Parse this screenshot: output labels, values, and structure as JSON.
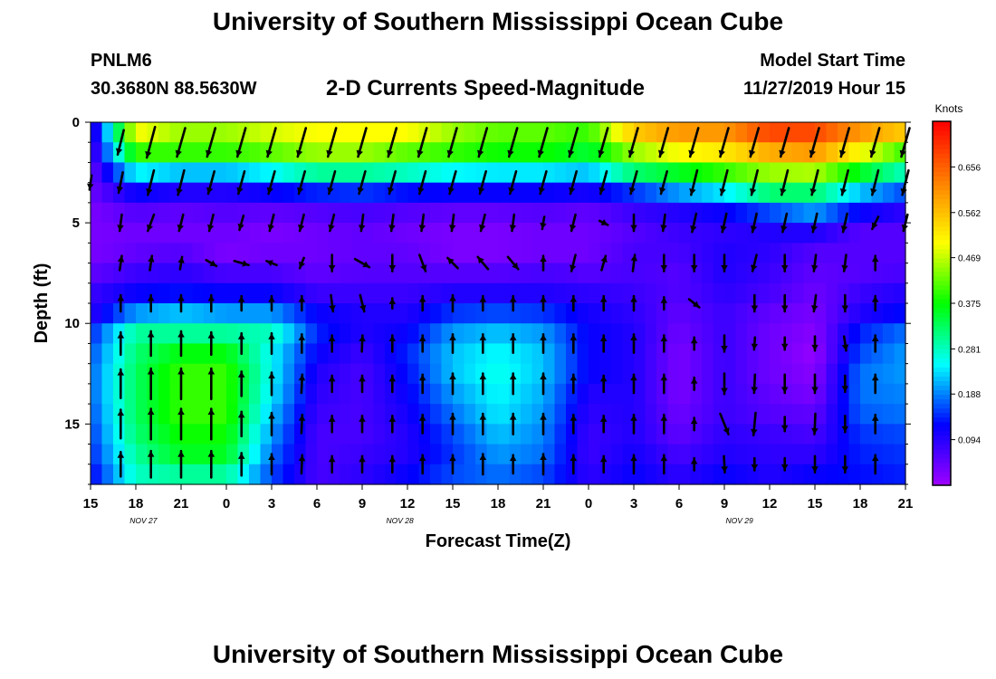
{
  "header": {
    "title": "University of Southern Mississippi Ocean Cube",
    "station_id": "PNLM6",
    "coordinates": "30.3680N 88.5630W",
    "chart_title": "2-D Currents Speed-Magnitude",
    "model_start_label": "Model Start Time",
    "model_start_value": "11/27/2019 Hour 15"
  },
  "footer": {
    "title": "University of Southern Mississippi Ocean Cube"
  },
  "chart_data": {
    "type": "heatmap",
    "title": "2-D Currents Speed-Magnitude",
    "xlabel": "Forecast Time(Z)",
    "ylabel": "Depth (ft)",
    "units_label": "Knots",
    "x_hours": [
      0,
      3,
      6,
      9,
      12,
      15,
      18,
      21,
      24,
      27,
      30,
      33,
      36,
      39,
      42,
      45,
      48,
      51,
      54
    ],
    "x_tick_labels": [
      "15",
      "18",
      "21",
      "0",
      "3",
      "6",
      "9",
      "12",
      "15",
      "18",
      "21",
      "0",
      "3",
      "6",
      "9",
      "12",
      "15",
      "18",
      "21"
    ],
    "date_labels": [
      {
        "text": "NOV  27",
        "hour": 3.5
      },
      {
        "text": "NOV  28",
        "hour": 20.5
      },
      {
        "text": "NOV  29",
        "hour": 43
      }
    ],
    "ylim": [
      0,
      18
    ],
    "y_ticks": [
      0,
      5,
      10,
      15
    ],
    "depths": [
      0.5,
      1.5,
      2.5,
      3.5,
      4.5,
      5.5,
      6.5,
      7.5,
      8.5,
      9.5,
      10.5,
      11.5,
      12.5,
      13.5,
      14.5,
      15.5,
      16.5,
      17.5
    ],
    "colorbar": {
      "min": 0,
      "max": 0.75,
      "ticks": [
        0.094,
        0.188,
        0.281,
        0.375,
        0.469,
        0.562,
        0.656
      ],
      "tick_labels": [
        "0.094",
        "0.188",
        "0.281",
        "0.375",
        "0.469",
        "0.562",
        "0.656"
      ],
      "colors": [
        "#a000ff",
        "#0000ff",
        "#00ffff",
        "#00ff00",
        "#ffff00",
        "#ff8000",
        "#ff0000"
      ]
    },
    "speed_keys": [
      {
        "hour": 0,
        "profile": [
          0.06,
          0.05,
          0.04,
          0.04,
          0.03,
          0.03,
          0.03,
          0.05,
          0.08,
          0.09,
          0.14,
          0.16,
          0.17,
          0.17,
          0.16,
          0.15,
          0.14,
          0.12
        ]
      },
      {
        "hour": 3,
        "profile": [
          0.5,
          0.4,
          0.25,
          0.12,
          0.06,
          0.04,
          0.05,
          0.08,
          0.12,
          0.2,
          0.3,
          0.32,
          0.33,
          0.33,
          0.33,
          0.32,
          0.3,
          0.28
        ]
      },
      {
        "hour": 6,
        "profile": [
          0.45,
          0.4,
          0.22,
          0.1,
          0.05,
          0.04,
          0.06,
          0.09,
          0.13,
          0.22,
          0.3,
          0.37,
          0.4,
          0.4,
          0.4,
          0.38,
          0.36,
          0.3
        ]
      },
      {
        "hour": 9,
        "profile": [
          0.45,
          0.4,
          0.22,
          0.1,
          0.06,
          0.04,
          0.03,
          0.07,
          0.12,
          0.2,
          0.3,
          0.37,
          0.4,
          0.4,
          0.4,
          0.38,
          0.36,
          0.3
        ]
      },
      {
        "hour": 12,
        "profile": [
          0.48,
          0.42,
          0.25,
          0.12,
          0.05,
          0.03,
          0.04,
          0.07,
          0.12,
          0.2,
          0.28,
          0.25,
          0.25,
          0.24,
          0.22,
          0.2,
          0.18,
          0.16
        ]
      },
      {
        "hour": 15,
        "profile": [
          0.5,
          0.45,
          0.3,
          0.14,
          0.06,
          0.04,
          0.04,
          0.05,
          0.08,
          0.12,
          0.14,
          0.12,
          0.1,
          0.09,
          0.08,
          0.07,
          0.07,
          0.07
        ]
      },
      {
        "hour": 18,
        "profile": [
          0.5,
          0.45,
          0.3,
          0.15,
          0.07,
          0.05,
          0.05,
          0.06,
          0.08,
          0.1,
          0.1,
          0.08,
          0.07,
          0.07,
          0.07,
          0.07,
          0.08,
          0.09
        ]
      },
      {
        "hour": 21,
        "profile": [
          0.5,
          0.42,
          0.28,
          0.13,
          0.06,
          0.04,
          0.05,
          0.06,
          0.08,
          0.1,
          0.12,
          0.14,
          0.13,
          0.12,
          0.11,
          0.1,
          0.1,
          0.12
        ]
      },
      {
        "hour": 24,
        "profile": [
          0.45,
          0.4,
          0.25,
          0.12,
          0.05,
          0.03,
          0.03,
          0.06,
          0.1,
          0.15,
          0.2,
          0.22,
          0.22,
          0.2,
          0.18,
          0.16,
          0.15,
          0.16
        ]
      },
      {
        "hour": 27,
        "profile": [
          0.42,
          0.38,
          0.24,
          0.12,
          0.05,
          0.03,
          0.03,
          0.06,
          0.1,
          0.16,
          0.22,
          0.25,
          0.26,
          0.25,
          0.24,
          0.22,
          0.2,
          0.18
        ]
      },
      {
        "hour": 30,
        "profile": [
          0.42,
          0.38,
          0.24,
          0.12,
          0.06,
          0.04,
          0.04,
          0.07,
          0.1,
          0.15,
          0.2,
          0.22,
          0.22,
          0.21,
          0.2,
          0.19,
          0.18,
          0.16
        ]
      },
      {
        "hour": 33,
        "profile": [
          0.4,
          0.35,
          0.22,
          0.11,
          0.05,
          0.04,
          0.04,
          0.06,
          0.09,
          0.11,
          0.12,
          0.12,
          0.12,
          0.1,
          0.09,
          0.08,
          0.08,
          0.09
        ]
      },
      {
        "hour": 36,
        "profile": [
          0.55,
          0.45,
          0.32,
          0.15,
          0.08,
          0.06,
          0.07,
          0.07,
          0.08,
          0.09,
          0.1,
          0.1,
          0.1,
          0.1,
          0.1,
          0.1,
          0.11,
          0.12
        ]
      },
      {
        "hour": 39,
        "profile": [
          0.6,
          0.5,
          0.36,
          0.2,
          0.1,
          0.08,
          0.07,
          0.06,
          0.06,
          0.05,
          0.04,
          0.03,
          0.03,
          0.03,
          0.04,
          0.05,
          0.07,
          0.09
        ]
      },
      {
        "hour": 42,
        "profile": [
          0.6,
          0.52,
          0.4,
          0.24,
          0.12,
          0.09,
          0.1,
          0.1,
          0.09,
          0.08,
          0.08,
          0.08,
          0.08,
          0.08,
          0.08,
          0.09,
          0.1,
          0.12
        ]
      },
      {
        "hour": 45,
        "profile": [
          0.68,
          0.58,
          0.45,
          0.32,
          0.16,
          0.1,
          0.09,
          0.08,
          0.07,
          0.05,
          0.04,
          0.04,
          0.04,
          0.05,
          0.06,
          0.08,
          0.09,
          0.1
        ]
      },
      {
        "hour": 48,
        "profile": [
          0.68,
          0.6,
          0.46,
          0.32,
          0.2,
          0.1,
          0.06,
          0.05,
          0.04,
          0.03,
          0.02,
          0.01,
          0.02,
          0.03,
          0.05,
          0.07,
          0.09,
          0.12
        ]
      },
      {
        "hour": 51,
        "profile": [
          0.6,
          0.5,
          0.36,
          0.22,
          0.12,
          0.06,
          0.06,
          0.06,
          0.08,
          0.1,
          0.14,
          0.16,
          0.18,
          0.18,
          0.17,
          0.15,
          0.14,
          0.13
        ]
      },
      {
        "hour": 54,
        "profile": [
          0.55,
          0.4,
          0.28,
          0.16,
          0.09,
          0.06,
          0.06,
          0.07,
          0.1,
          0.13,
          0.18,
          0.2,
          0.2,
          0.19,
          0.18,
          0.16,
          0.15,
          0.14
        ]
      }
    ],
    "vector_depths": [
      1,
      3,
      5,
      7,
      9,
      11,
      13,
      15,
      17
    ],
    "vector_hours": [
      0,
      2,
      4,
      6,
      8,
      10,
      12,
      14,
      16,
      18,
      20,
      22,
      24,
      26,
      28,
      30,
      32,
      34,
      36,
      38,
      40,
      42,
      44,
      46,
      48,
      50,
      52,
      54
    ],
    "vectors": [
      {
        "hour": 0,
        "u": [
          0,
          -0.05,
          0,
          0,
          0,
          0,
          0,
          0,
          0
        ],
        "v": [
          0,
          -0.35,
          0,
          0,
          0,
          0,
          0,
          0,
          0
        ]
      },
      {
        "hour": 2,
        "u": [
          -0.15,
          -0.1,
          -0.05,
          0.05,
          0,
          0,
          0,
          0,
          0
        ],
        "v": [
          -0.6,
          -0.5,
          -0.4,
          0.35,
          0.4,
          0.55,
          0.7,
          0.7,
          0.6
        ]
      },
      {
        "hour": 4,
        "u": [
          -0.2,
          -0.15,
          -0.15,
          0.05,
          0,
          0,
          0,
          0,
          0
        ],
        "v": [
          -0.75,
          -0.6,
          -0.4,
          0.35,
          0.4,
          0.6,
          0.75,
          0.75,
          0.65
        ]
      },
      {
        "hour": 6,
        "u": [
          -0.2,
          -0.15,
          -0.1,
          0.05,
          0,
          0,
          0,
          0,
          0
        ],
        "v": [
          -0.7,
          -0.6,
          -0.4,
          0.3,
          0.4,
          0.6,
          0.75,
          0.75,
          0.65
        ]
      },
      {
        "hour": 8,
        "u": [
          -0.2,
          -0.15,
          -0.1,
          0.25,
          0,
          0,
          0,
          0,
          0
        ],
        "v": [
          -0.7,
          -0.55,
          -0.4,
          -0.15,
          0.4,
          0.55,
          0.75,
          0.75,
          0.65
        ]
      },
      {
        "hour": 10,
        "u": [
          -0.2,
          -0.15,
          -0.1,
          0.35,
          0,
          0,
          0,
          0,
          0
        ],
        "v": [
          -0.7,
          -0.55,
          -0.35,
          -0.1,
          0.35,
          0.5,
          0.6,
          0.6,
          0.55
        ]
      },
      {
        "hour": 12,
        "u": [
          -0.2,
          -0.15,
          -0.1,
          -0.25,
          0,
          0,
          0,
          0,
          0
        ],
        "v": [
          -0.7,
          -0.55,
          -0.4,
          0.1,
          0.35,
          0.5,
          0.55,
          0.55,
          0.5
        ]
      },
      {
        "hour": 14,
        "u": [
          -0.2,
          -0.15,
          -0.1,
          -0.1,
          0,
          0,
          0.02,
          0.02,
          0.02
        ],
        "v": [
          -0.7,
          -0.55,
          -0.4,
          -0.25,
          0.35,
          0.45,
          0.45,
          0.45,
          0.45
        ]
      },
      {
        "hour": 16,
        "u": [
          -0.2,
          -0.15,
          -0.1,
          0,
          0.05,
          0,
          0,
          0,
          0
        ],
        "v": [
          -0.7,
          -0.55,
          -0.4,
          -0.4,
          -0.4,
          0.4,
          0.4,
          0.4,
          0.4
        ]
      },
      {
        "hour": 18,
        "u": [
          -0.2,
          -0.15,
          -0.05,
          0.35,
          0.1,
          0.02,
          0,
          0,
          0
        ],
        "v": [
          -0.7,
          -0.55,
          -0.4,
          -0.2,
          -0.4,
          0.4,
          0.4,
          0.4,
          0.4
        ]
      },
      {
        "hour": 20,
        "u": [
          -0.2,
          -0.15,
          -0.05,
          0,
          0,
          0,
          0,
          0,
          0
        ],
        "v": [
          -0.7,
          -0.55,
          -0.4,
          -0.4,
          0.25,
          0.4,
          0.4,
          0.4,
          0.4
        ]
      },
      {
        "hour": 22,
        "u": [
          -0.2,
          -0.15,
          -0.05,
          0.15,
          0,
          0,
          0,
          0,
          0
        ],
        "v": [
          -0.7,
          -0.55,
          -0.4,
          -0.4,
          0.35,
          0.4,
          0.45,
          0.45,
          0.45
        ]
      },
      {
        "hour": 24,
        "u": [
          -0.2,
          -0.15,
          -0.05,
          -0.25,
          0,
          0,
          0,
          0,
          0
        ],
        "v": [
          -0.7,
          -0.55,
          -0.4,
          0.25,
          0.4,
          0.45,
          0.5,
          0.5,
          0.45
        ]
      },
      {
        "hour": 26,
        "u": [
          -0.2,
          -0.15,
          -0.1,
          -0.25,
          0,
          0,
          0,
          0,
          0
        ],
        "v": [
          -0.7,
          -0.55,
          -0.4,
          0.3,
          0.35,
          0.45,
          0.5,
          0.5,
          0.5
        ]
      },
      {
        "hour": 28,
        "u": [
          -0.2,
          -0.15,
          -0.05,
          0.25,
          0,
          0,
          0,
          0,
          0
        ],
        "v": [
          -0.7,
          -0.55,
          -0.4,
          -0.3,
          0.35,
          0.45,
          0.5,
          0.5,
          0.45
        ]
      },
      {
        "hour": 30,
        "u": [
          -0.2,
          -0.15,
          -0.05,
          0,
          0,
          0,
          0,
          0,
          0
        ],
        "v": [
          -0.7,
          -0.55,
          -0.3,
          0.35,
          0.35,
          0.45,
          0.5,
          0.5,
          0.5
        ]
      },
      {
        "hour": 32,
        "u": [
          -0.2,
          -0.15,
          -0.1,
          -0.1,
          0,
          0,
          0,
          0,
          0
        ],
        "v": [
          -0.7,
          -0.55,
          -0.4,
          -0.4,
          0.35,
          0.45,
          0.45,
          0.45,
          0.45
        ]
      },
      {
        "hour": 34,
        "u": [
          -0.2,
          -0.15,
          0.2,
          0.1,
          0,
          0,
          0,
          0,
          0
        ],
        "v": [
          -0.7,
          -0.55,
          -0.1,
          0.35,
          0.35,
          0.4,
          0.4,
          0.4,
          0.4
        ]
      },
      {
        "hour": 36,
        "u": [
          -0.2,
          -0.15,
          0,
          0.05,
          0,
          0,
          0,
          0,
          0
        ],
        "v": [
          -0.7,
          -0.55,
          -0.4,
          0.4,
          0.35,
          0.45,
          0.45,
          0.45,
          0.45
        ]
      },
      {
        "hour": 38,
        "u": [
          -0.2,
          -0.15,
          -0.05,
          0,
          0,
          0,
          0,
          0,
          0
        ],
        "v": [
          -0.7,
          -0.55,
          -0.4,
          -0.4,
          0.3,
          0.4,
          0.45,
          0.45,
          0.45
        ]
      },
      {
        "hour": 40,
        "u": [
          -0.2,
          -0.15,
          -0.1,
          0,
          0.25,
          0,
          0,
          0,
          0
        ],
        "v": [
          -0.7,
          -0.6,
          -0.45,
          -0.4,
          -0.2,
          0.3,
          0.3,
          0.3,
          0.3
        ]
      },
      {
        "hour": 42,
        "u": [
          -0.2,
          -0.15,
          -0.1,
          0,
          0,
          0,
          0,
          0.2,
          0.02
        ],
        "v": [
          -0.7,
          -0.6,
          -0.45,
          -0.4,
          0,
          -0.4,
          -0.5,
          -0.5,
          -0.4
        ]
      },
      {
        "hour": 44,
        "u": [
          -0.2,
          -0.15,
          -0.1,
          -0.1,
          0,
          -0.02,
          -0.02,
          -0.05,
          0
        ],
        "v": [
          -0.7,
          -0.6,
          -0.45,
          -0.4,
          -0.4,
          -0.3,
          -0.45,
          -0.55,
          -0.3
        ]
      },
      {
        "hour": 46,
        "u": [
          -0.2,
          -0.15,
          -0.1,
          0,
          0,
          0,
          0,
          0,
          0
        ],
        "v": [
          -0.7,
          -0.6,
          -0.45,
          -0.4,
          -0.4,
          -0.3,
          -0.45,
          -0.35,
          -0.3
        ]
      },
      {
        "hour": 48,
        "u": [
          -0.2,
          -0.15,
          -0.1,
          -0.05,
          -0.05,
          0,
          0,
          -0.02,
          0
        ],
        "v": [
          -0.7,
          -0.6,
          -0.45,
          -0.4,
          -0.4,
          -0.35,
          -0.45,
          -0.5,
          -0.4
        ]
      },
      {
        "hour": 50,
        "u": [
          -0.2,
          -0.15,
          -0.1,
          -0.05,
          0,
          0.05,
          0,
          0,
          0
        ],
        "v": [
          -0.7,
          -0.6,
          -0.45,
          -0.4,
          -0.4,
          -0.35,
          -0.4,
          -0.4,
          -0.4
        ]
      },
      {
        "hour": 52,
        "u": [
          -0.2,
          -0.15,
          -0.15,
          0,
          0,
          0,
          0,
          0,
          0
        ],
        "v": [
          -0.7,
          -0.6,
          -0.3,
          0.35,
          0.35,
          0.4,
          0.45,
          0.45,
          0.45
        ]
      },
      {
        "hour": 54,
        "u": [
          -0.2,
          -0.15,
          -0.1,
          0,
          0,
          0,
          0,
          0,
          0
        ],
        "v": [
          -0.7,
          -0.6,
          -0.4,
          0,
          0,
          0,
          0,
          0,
          0
        ]
      }
    ]
  }
}
